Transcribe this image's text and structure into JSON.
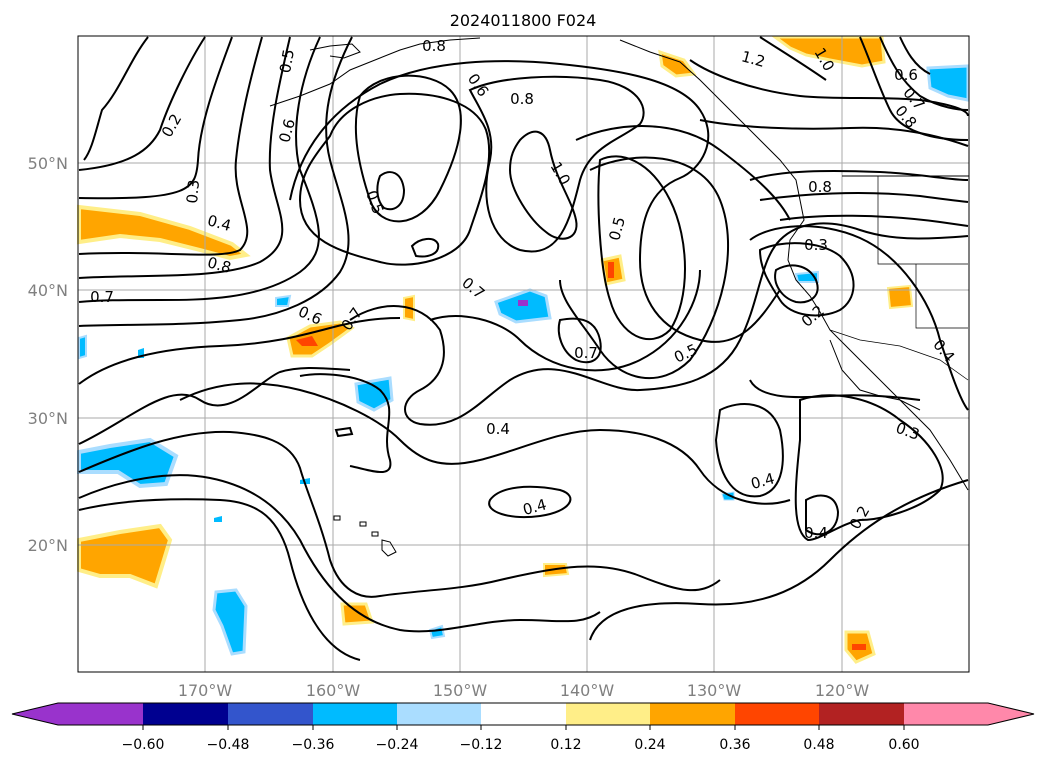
{
  "title": "2024011800 F024",
  "lat_labels": [
    "50°N",
    "40°N",
    "30°N",
    "20°N"
  ],
  "lon_labels": [
    "170°W",
    "160°W",
    "150°W",
    "140°W",
    "130°W",
    "120°W"
  ],
  "colorbar": {
    "tick_labels": [
      "−0.60",
      "−0.48",
      "−0.36",
      "−0.24",
      "−0.12",
      "0.12",
      "0.24",
      "0.36",
      "0.48",
      "0.60"
    ],
    "colors": [
      "#9933cc",
      "#000090",
      "#3355cc",
      "#00bbff",
      "#aaddff",
      "#ffffff",
      "#ffee88",
      "#ffa500",
      "#ff4500",
      "#b22222",
      "#ff88aa"
    ]
  },
  "contour_labels": [
    "0.8",
    "1.2",
    "1.0",
    "0.6",
    "0.7",
    "0.8",
    "0.5",
    "0.2",
    "0.6",
    "0.8",
    "0.6",
    "1.0",
    "0.8",
    "0.3",
    "0.5",
    "0.4",
    "0.5",
    "0.8",
    "0.3",
    "0.7",
    "0.7",
    "0.6",
    "0.7",
    "0.2",
    "0.4",
    "0.7",
    "0.5",
    "0.4",
    "0.3",
    "0.4",
    "0.4",
    "0.4",
    "0.2"
  ],
  "colors": {
    "orange": "#ffa500",
    "light_orange": "#ffee88",
    "red_orange": "#ff4500",
    "cyan": "#00bbff",
    "light_cyan": "#aaddff",
    "purple": "#9933cc",
    "grid": "#aaaaaa"
  }
}
